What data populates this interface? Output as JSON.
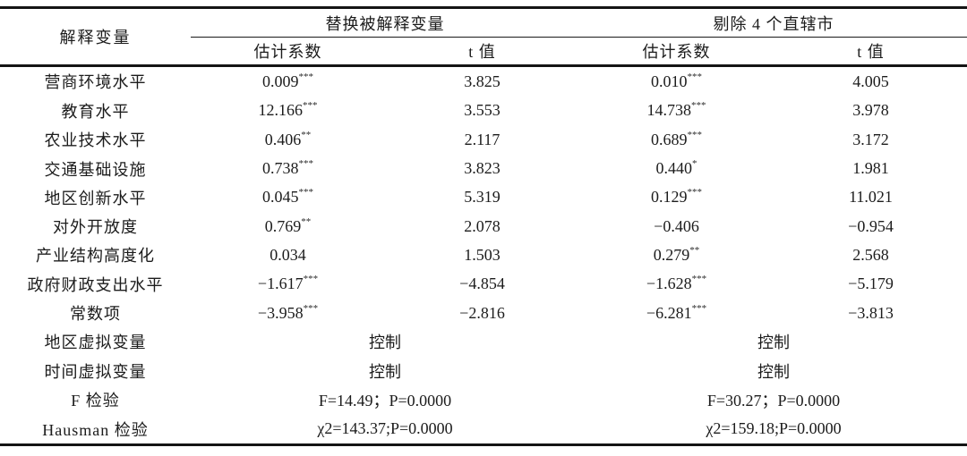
{
  "table": {
    "col1_header": "解释变量",
    "groups": [
      {
        "label": "替换被解释变量"
      },
      {
        "label": "剔除 4 个直辖市"
      }
    ],
    "sub_headers": [
      "估计系数",
      "t 值",
      "估计系数",
      "t 值"
    ],
    "rows": [
      {
        "label": "营商环境水平",
        "cells": [
          {
            "v": "0.009",
            "sup": "***"
          },
          {
            "v": "3.825"
          },
          {
            "v": "0.010",
            "sup": "***"
          },
          {
            "v": "4.005"
          }
        ]
      },
      {
        "label": "教育水平",
        "cells": [
          {
            "v": "12.166",
            "sup": "***"
          },
          {
            "v": "3.553"
          },
          {
            "v": "14.738",
            "sup": "***"
          },
          {
            "v": "3.978"
          }
        ]
      },
      {
        "label": "农业技术水平",
        "cells": [
          {
            "v": "0.406",
            "sup": "**"
          },
          {
            "v": "2.117"
          },
          {
            "v": "0.689",
            "sup": "***"
          },
          {
            "v": "3.172"
          }
        ]
      },
      {
        "label": "交通基础设施",
        "cells": [
          {
            "v": "0.738",
            "sup": "***"
          },
          {
            "v": "3.823"
          },
          {
            "v": "0.440",
            "sup": "*"
          },
          {
            "v": "1.981"
          }
        ]
      },
      {
        "label": "地区创新水平",
        "cells": [
          {
            "v": "0.045",
            "sup": "***"
          },
          {
            "v": "5.319"
          },
          {
            "v": "0.129",
            "sup": "***"
          },
          {
            "v": "11.021"
          }
        ]
      },
      {
        "label": "对外开放度",
        "cells": [
          {
            "v": "0.769",
            "sup": "**"
          },
          {
            "v": "2.078"
          },
          {
            "v": "−0.406",
            "sup": ""
          },
          {
            "v": "−0.954"
          }
        ]
      },
      {
        "label": "产业结构高度化",
        "cells": [
          {
            "v": "0.034",
            "sup": ""
          },
          {
            "v": "1.503"
          },
          {
            "v": "0.279",
            "sup": "**"
          },
          {
            "v": "2.568"
          }
        ]
      },
      {
        "label": "政府财政支出水平",
        "cells": [
          {
            "v": "−1.617",
            "sup": "***"
          },
          {
            "v": "−4.854"
          },
          {
            "v": "−1.628",
            "sup": "***"
          },
          {
            "v": "−5.179"
          }
        ]
      },
      {
        "label": "常数项",
        "cells": [
          {
            "v": "−3.958",
            "sup": "***"
          },
          {
            "v": "−2.816"
          },
          {
            "v": "−6.281",
            "sup": "***"
          },
          {
            "v": "−3.813"
          }
        ]
      }
    ],
    "span_rows": [
      {
        "label": "地区虚拟变量",
        "cells": [
          "控制",
          "控制"
        ]
      },
      {
        "label": "时间虚拟变量",
        "cells": [
          "控制",
          "控制"
        ]
      },
      {
        "label": "F 检验",
        "cells": [
          "F=14.49；P=0.0000",
          "F=30.27；P=0.0000"
        ]
      },
      {
        "label": "Hausman 检验",
        "cells": [
          "χ2=143.37;P=0.0000",
          "χ2=159.18;P=0.0000"
        ]
      }
    ]
  }
}
